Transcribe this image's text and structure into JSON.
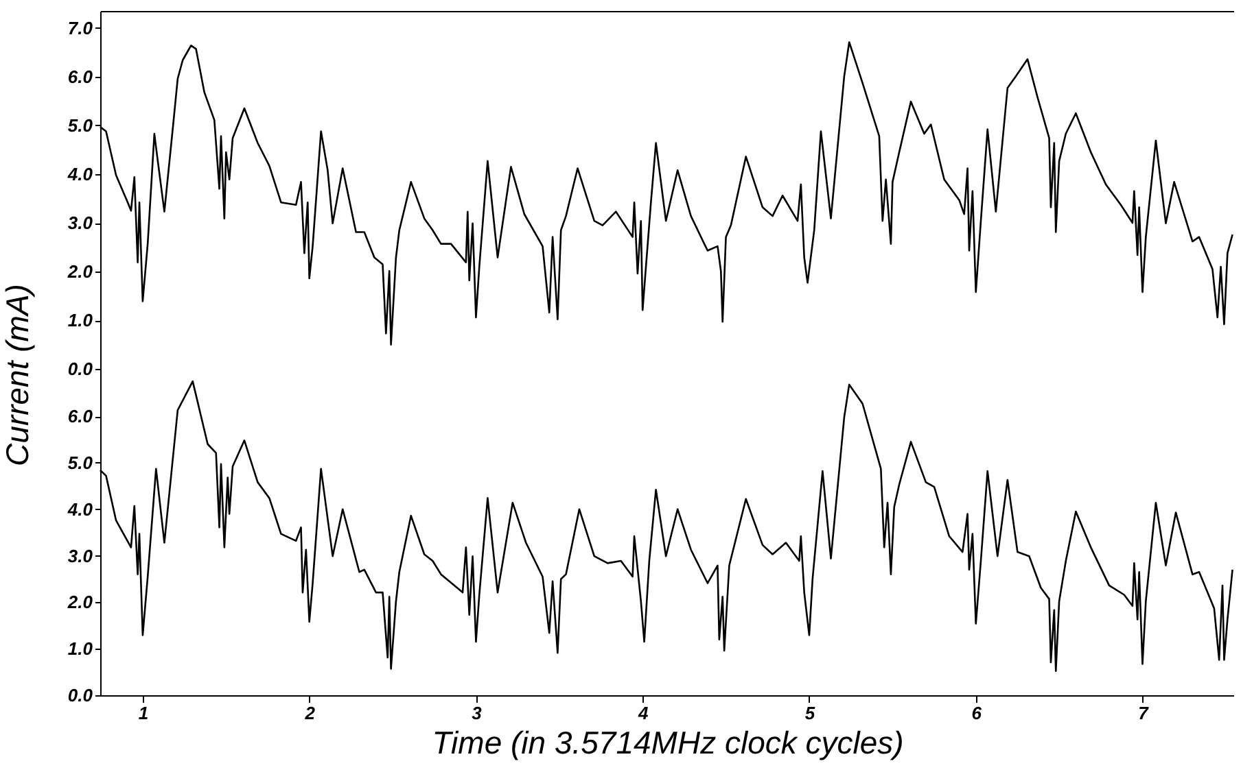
{
  "chart_data": [
    {
      "type": "line",
      "ylabel": "Current (mA)",
      "xlim": [
        0.745,
        7.55
      ],
      "ylim": [
        -0.11,
        7.35
      ],
      "tick_labels": "y",
      "grid": false,
      "yticks": [
        {
          "value": 0,
          "label": "0.0"
        },
        {
          "value": 1,
          "label": "1.0"
        },
        {
          "value": 2,
          "label": "2.0"
        },
        {
          "value": 3,
          "label": "3.0"
        },
        {
          "value": 4,
          "label": "4.0"
        },
        {
          "value": 5,
          "label": "5.0"
        },
        {
          "value": 6,
          "label": "6.0"
        },
        {
          "value": 7,
          "label": "7.0"
        }
      ],
      "series": [
        {
          "color": "#000000",
          "x": [
            0.745,
            0.78,
            0.84,
            0.91,
            0.93,
            0.95,
            0.97,
            0.98,
            1.0,
            1.03,
            1.07,
            1.08,
            1.13,
            1.18,
            1.21,
            1.24,
            1.29,
            1.32,
            1.37,
            1.43,
            1.46,
            1.47,
            1.49,
            1.5,
            1.52,
            1.54,
            1.61,
            1.69,
            1.76,
            1.83,
            1.92,
            1.95,
            1.97,
            1.99,
            2.0,
            2.02,
            2.07,
            2.11,
            2.14,
            2.2,
            2.28,
            2.33,
            2.39,
            2.44,
            2.46,
            2.48,
            2.49,
            2.52,
            2.54,
            2.61,
            2.69,
            2.74,
            2.79,
            2.85,
            2.94,
            2.95,
            2.96,
            2.98,
            3.0,
            3.02,
            3.07,
            3.13,
            3.21,
            3.29,
            3.4,
            3.44,
            3.46,
            3.49,
            3.51,
            3.54,
            3.61,
            3.71,
            3.76,
            3.84,
            3.94,
            3.95,
            3.97,
            3.99,
            4.0,
            4.05,
            4.08,
            4.14,
            4.21,
            4.29,
            4.39,
            4.45,
            4.47,
            4.48,
            4.5,
            4.53,
            4.62,
            4.72,
            4.78,
            4.84,
            4.93,
            4.95,
            4.97,
            4.99,
            5.03,
            5.07,
            5.13,
            5.21,
            5.24,
            5.32,
            5.42,
            5.44,
            5.46,
            5.49,
            5.5,
            5.54,
            5.61,
            5.69,
            5.73,
            5.81,
            5.9,
            5.93,
            5.95,
            5.96,
            5.98,
            6.0,
            6.03,
            6.07,
            6.12,
            6.19,
            6.24,
            6.31,
            6.37,
            6.44,
            6.45,
            6.47,
            6.48,
            6.5,
            6.54,
            6.6,
            6.69,
            6.78,
            6.87,
            6.94,
            6.95,
            6.97,
            6.98,
            7.0,
            7.02,
            7.08,
            7.14,
            7.19,
            7.3,
            7.34,
            7.42,
            7.45,
            7.47,
            7.49,
            7.51,
            7.54
          ],
          "values": [
            4.97,
            4.88,
            3.98,
            3.42,
            3.25,
            3.94,
            2.19,
            3.42,
            1.39,
            2.57,
            4.83,
            4.55,
            3.23,
            4.92,
            5.96,
            6.34,
            6.64,
            6.57,
            5.68,
            5.11,
            3.7,
            4.78,
            3.09,
            4.45,
            3.89,
            4.74,
            5.35,
            4.64,
            4.17,
            3.42,
            3.37,
            3.84,
            2.38,
            3.42,
            1.86,
            2.52,
            4.88,
            4.08,
            2.99,
            4.12,
            2.81,
            2.81,
            2.29,
            2.15,
            0.73,
            2.01,
            0.5,
            2.29,
            2.85,
            3.84,
            3.09,
            2.85,
            2.57,
            2.57,
            2.19,
            3.23,
            1.82,
            2.99,
            1.06,
            2.1,
            4.27,
            2.29,
            4.15,
            3.18,
            2.52,
            1.16,
            2.71,
            1.02,
            2.85,
            3.14,
            4.12,
            3.04,
            2.95,
            3.23,
            2.71,
            3.42,
            1.96,
            3.04,
            1.21,
            3.42,
            4.64,
            3.04,
            4.08,
            3.14,
            2.43,
            2.52,
            2.01,
            0.97,
            2.71,
            2.95,
            4.36,
            3.32,
            3.14,
            3.56,
            3.04,
            3.79,
            2.29,
            1.77,
            2.85,
            4.88,
            3.09,
            6.01,
            6.71,
            5.87,
            4.78,
            3.04,
            3.89,
            2.57,
            3.84,
            4.45,
            5.49,
            4.83,
            5.02,
            3.89,
            3.47,
            3.18,
            4.12,
            2.43,
            3.65,
            1.58,
            3.04,
            4.92,
            3.23,
            5.77,
            6.01,
            6.36,
            5.58,
            4.74,
            3.32,
            4.64,
            2.81,
            4.27,
            4.83,
            5.25,
            4.45,
            3.79,
            3.37,
            3.0,
            3.65,
            2.34,
            3.32,
            1.58,
            2.71,
            4.69,
            2.99,
            3.84,
            2.62,
            2.71,
            2.05,
            1.06,
            2.1,
            0.92,
            2.38,
            2.76
          ]
        }
      ]
    },
    {
      "type": "line",
      "xlabel": "Time (in 3.5714MHz clock cycles)",
      "xlim": [
        0.745,
        7.55
      ],
      "ylim": [
        0,
        6.9
      ],
      "grid": false,
      "xticks": [
        1,
        2,
        3,
        4,
        5,
        6,
        7
      ],
      "yticks": [
        {
          "value": 0,
          "label": "0.0"
        },
        {
          "value": 1,
          "label": "1.0"
        },
        {
          "value": 2,
          "label": "2.0"
        },
        {
          "value": 3,
          "label": "3.0"
        },
        {
          "value": 4,
          "label": "4.0"
        },
        {
          "value": 5,
          "label": "5.0"
        },
        {
          "value": 6,
          "label": "6.0"
        }
      ],
      "series": [
        {
          "color": "#000000",
          "x": [
            0.745,
            0.78,
            0.84,
            0.93,
            0.95,
            0.97,
            0.98,
            1.0,
            1.03,
            1.08,
            1.13,
            1.21,
            1.3,
            1.39,
            1.44,
            1.46,
            1.47,
            1.49,
            1.51,
            1.52,
            1.54,
            1.61,
            1.69,
            1.76,
            1.83,
            1.92,
            1.95,
            1.96,
            1.98,
            2.0,
            2.02,
            2.07,
            2.14,
            2.2,
            2.3,
            2.33,
            2.4,
            2.44,
            2.47,
            2.48,
            2.49,
            2.52,
            2.54,
            2.61,
            2.69,
            2.74,
            2.79,
            2.84,
            2.92,
            2.94,
            2.96,
            2.98,
            3.0,
            3.02,
            3.07,
            3.13,
            3.22,
            3.3,
            3.4,
            3.44,
            3.46,
            3.49,
            3.51,
            3.54,
            3.62,
            3.71,
            3.79,
            3.87,
            3.94,
            3.95,
            3.99,
            4.01,
            4.04,
            4.08,
            4.14,
            4.21,
            4.29,
            4.39,
            4.45,
            4.46,
            4.48,
            4.49,
            4.52,
            4.62,
            4.72,
            4.78,
            4.86,
            4.94,
            4.95,
            4.97,
            5.0,
            5.02,
            5.08,
            5.13,
            5.21,
            5.24,
            5.32,
            5.43,
            5.45,
            5.47,
            5.49,
            5.51,
            5.54,
            5.61,
            5.7,
            5.75,
            5.84,
            5.92,
            5.95,
            5.96,
            5.98,
            6.0,
            6.03,
            6.07,
            6.13,
            6.19,
            6.25,
            6.32,
            6.39,
            6.44,
            6.45,
            6.47,
            6.48,
            6.5,
            6.54,
            6.6,
            6.69,
            6.8,
            6.89,
            6.94,
            6.95,
            6.97,
            6.98,
            7.0,
            7.02,
            7.08,
            7.14,
            7.2,
            7.3,
            7.34,
            7.43,
            7.46,
            7.48,
            7.49,
            7.51,
            7.54
          ],
          "values": [
            4.84,
            4.72,
            3.76,
            3.18,
            4.07,
            2.6,
            3.47,
            1.29,
            2.55,
            4.87,
            3.28,
            6.13,
            6.75,
            5.4,
            5.21,
            3.61,
            4.97,
            3.18,
            4.68,
            3.9,
            4.92,
            5.48,
            4.58,
            4.24,
            3.47,
            3.32,
            3.61,
            2.21,
            3.13,
            1.58,
            2.41,
            4.87,
            2.99,
            4.0,
            2.65,
            2.7,
            2.21,
            2.21,
            0.81,
            2.12,
            0.57,
            2.02,
            2.65,
            3.86,
            3.03,
            2.89,
            2.6,
            2.45,
            2.21,
            3.18,
            1.73,
            2.99,
            1.15,
            2.16,
            4.24,
            2.21,
            4.14,
            3.28,
            2.55,
            1.34,
            2.45,
            0.91,
            2.5,
            2.6,
            4.0,
            2.99,
            2.84,
            2.89,
            2.55,
            3.42,
            2.02,
            1.15,
            2.89,
            4.42,
            2.99,
            4.0,
            3.13,
            2.41,
            2.79,
            1.2,
            2.12,
            0.96,
            2.79,
            4.22,
            3.23,
            3.03,
            3.28,
            2.89,
            3.42,
            2.21,
            1.29,
            2.5,
            4.82,
            2.94,
            5.98,
            6.68,
            6.27,
            4.87,
            3.18,
            4.14,
            2.6,
            4.05,
            4.53,
            5.45,
            4.58,
            4.48,
            3.42,
            3.08,
            3.9,
            2.7,
            3.47,
            1.54,
            2.89,
            4.82,
            2.99,
            4.63,
            3.08,
            2.99,
            2.31,
            2.07,
            0.71,
            1.83,
            0.52,
            2.02,
            2.89,
            3.95,
            3.18,
            2.36,
            2.16,
            1.92,
            2.84,
            1.63,
            2.65,
            0.67,
            2.02,
            4.14,
            2.79,
            3.93,
            2.6,
            2.65,
            1.87,
            0.76,
            2.36,
            0.76,
            1.63,
            2.7
          ]
        }
      ]
    }
  ]
}
